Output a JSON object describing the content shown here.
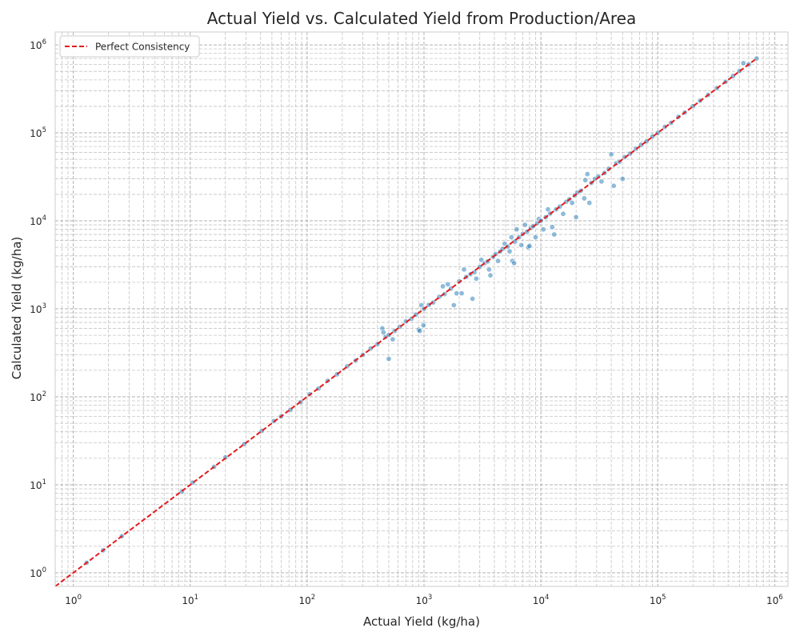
{
  "chart_data": {
    "type": "scatter",
    "title": "Actual Yield vs. Calculated Yield from Production/Area",
    "xlabel": "Actual Yield (kg/ha)",
    "ylabel": "Calculated Yield (kg/ha)",
    "xscale": "log",
    "yscale": "log",
    "xlim": [
      0.7,
      1300000
    ],
    "ylim": [
      0.7,
      1400000
    ],
    "x_ticks": [
      {
        "base": "10",
        "exp": "0",
        "value": 1
      },
      {
        "base": "10",
        "exp": "1",
        "value": 10
      },
      {
        "base": "10",
        "exp": "2",
        "value": 100
      },
      {
        "base": "10",
        "exp": "3",
        "value": 1000
      },
      {
        "base": "10",
        "exp": "4",
        "value": 10000
      },
      {
        "base": "10",
        "exp": "5",
        "value": 100000
      },
      {
        "base": "10",
        "exp": "6",
        "value": 1000000
      }
    ],
    "y_ticks": [
      {
        "base": "10",
        "exp": "0",
        "value": 1
      },
      {
        "base": "10",
        "exp": "1",
        "value": 10
      },
      {
        "base": "10",
        "exp": "2",
        "value": 100
      },
      {
        "base": "10",
        "exp": "3",
        "value": 1000
      },
      {
        "base": "10",
        "exp": "4",
        "value": 10000
      },
      {
        "base": "10",
        "exp": "5",
        "value": 100000
      },
      {
        "base": "10",
        "exp": "6",
        "value": 1000000
      }
    ],
    "grid": true,
    "grid_style": "dashed, major and minor",
    "legend": {
      "placement": "top-left",
      "entries": [
        {
          "label": "Perfect Consistency",
          "style": "dashed line",
          "color": "#e41a1c"
        }
      ]
    },
    "reference_line": {
      "name": "Perfect Consistency",
      "x": [
        0.7,
        700000
      ],
      "y": [
        0.7,
        700000
      ],
      "color": "#e41a1c",
      "style": "dashed"
    },
    "series": [
      {
        "name": "",
        "color": "#1f77b4",
        "points": [
          [
            1.3,
            1.3
          ],
          [
            1.8,
            1.8
          ],
          [
            2.6,
            2.6
          ],
          [
            8.5,
            8.4
          ],
          [
            10.5,
            10.6
          ],
          [
            16,
            16
          ],
          [
            20,
            20.5
          ],
          [
            29,
            29
          ],
          [
            41,
            41
          ],
          [
            52,
            53
          ],
          [
            60,
            60
          ],
          [
            72,
            71
          ],
          [
            88,
            87
          ],
          [
            105,
            107
          ],
          [
            125,
            124
          ],
          [
            150,
            152
          ],
          [
            180,
            180
          ],
          [
            220,
            222
          ],
          [
            260,
            258
          ],
          [
            300,
            300
          ],
          [
            350,
            355
          ],
          [
            400,
            398
          ],
          [
            440,
            600
          ],
          [
            450,
            540
          ],
          [
            470,
            480
          ],
          [
            500,
            270
          ],
          [
            500,
            505
          ],
          [
            540,
            450
          ],
          [
            560,
            560
          ],
          [
            620,
            625
          ],
          [
            700,
            720
          ],
          [
            780,
            770
          ],
          [
            850,
            860
          ],
          [
            900,
            580
          ],
          [
            920,
            560
          ],
          [
            950,
            1100
          ],
          [
            990,
            650
          ],
          [
            1000,
            1000
          ],
          [
            1100,
            1110
          ],
          [
            1200,
            1180
          ],
          [
            1350,
            1370
          ],
          [
            1450,
            1800
          ],
          [
            1500,
            1470
          ],
          [
            1600,
            1900
          ],
          [
            1700,
            1700
          ],
          [
            1800,
            1100
          ],
          [
            1900,
            1500
          ],
          [
            2000,
            2050
          ],
          [
            2100,
            1500
          ],
          [
            2200,
            2800
          ],
          [
            2300,
            2300
          ],
          [
            2500,
            2480
          ],
          [
            2600,
            1300
          ],
          [
            2700,
            2600
          ],
          [
            2800,
            2200
          ],
          [
            3000,
            3000
          ],
          [
            3100,
            3600
          ],
          [
            3300,
            3300
          ],
          [
            3500,
            3450
          ],
          [
            3600,
            2800
          ],
          [
            3700,
            2400
          ],
          [
            3900,
            3900
          ],
          [
            4100,
            4200
          ],
          [
            4300,
            3500
          ],
          [
            4500,
            4500
          ],
          [
            4700,
            4800
          ],
          [
            4900,
            5500
          ],
          [
            5200,
            5100
          ],
          [
            5400,
            4500
          ],
          [
            5600,
            6500
          ],
          [
            5700,
            3500
          ],
          [
            5900,
            3300
          ],
          [
            6000,
            5800
          ],
          [
            6200,
            8000
          ],
          [
            6500,
            6500
          ],
          [
            6800,
            5300
          ],
          [
            7000,
            7100
          ],
          [
            7300,
            9000
          ],
          [
            7600,
            7500
          ],
          [
            7800,
            5000
          ],
          [
            8000,
            5200
          ],
          [
            8200,
            8300
          ],
          [
            8600,
            8700
          ],
          [
            9000,
            6500
          ],
          [
            9300,
            9400
          ],
          [
            9600,
            10500
          ],
          [
            10000,
            10000
          ],
          [
            10500,
            8000
          ],
          [
            11000,
            11000
          ],
          [
            11500,
            13500
          ],
          [
            12000,
            12100
          ],
          [
            12500,
            8500
          ],
          [
            13000,
            7000
          ],
          [
            13500,
            13500
          ],
          [
            14500,
            14500
          ],
          [
            15500,
            12000
          ],
          [
            16500,
            16500
          ],
          [
            17500,
            17500
          ],
          [
            18500,
            16000
          ],
          [
            19500,
            19500
          ],
          [
            20000,
            11000
          ],
          [
            20500,
            21000
          ],
          [
            22000,
            22000
          ],
          [
            23500,
            18000
          ],
          [
            24000,
            29000
          ],
          [
            25000,
            34000
          ],
          [
            26000,
            16000
          ],
          [
            27000,
            27000
          ],
          [
            29000,
            30000
          ],
          [
            31000,
            32000
          ],
          [
            33000,
            28000
          ],
          [
            35000,
            35000
          ],
          [
            38000,
            39000
          ],
          [
            40000,
            57000
          ],
          [
            42000,
            25000
          ],
          [
            44000,
            45000
          ],
          [
            47000,
            47000
          ],
          [
            50000,
            30000
          ],
          [
            52000,
            53000
          ],
          [
            58000,
            58000
          ],
          [
            65000,
            66000
          ],
          [
            72000,
            73000
          ],
          [
            80000,
            80000
          ],
          [
            90000,
            91000
          ],
          [
            100000,
            100000
          ],
          [
            115000,
            117000
          ],
          [
            130000,
            130000
          ],
          [
            150000,
            152000
          ],
          [
            170000,
            170000
          ],
          [
            200000,
            201000
          ],
          [
            230000,
            232000
          ],
          [
            270000,
            270000
          ],
          [
            320000,
            322000
          ],
          [
            380000,
            380000
          ],
          [
            440000,
            442000
          ],
          [
            500000,
            505000
          ],
          [
            540000,
            620000
          ],
          [
            600000,
            600000
          ],
          [
            700000,
            700000
          ]
        ]
      }
    ]
  }
}
